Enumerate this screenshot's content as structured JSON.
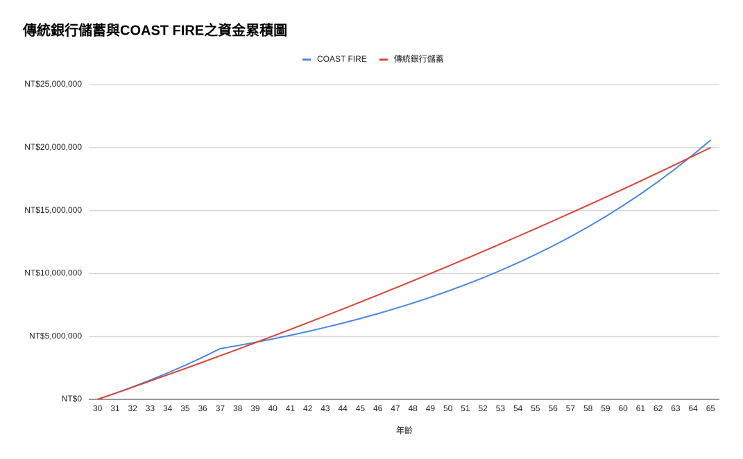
{
  "chart_data": {
    "type": "line",
    "title": "傳統銀行儲蓄與COAST FIRE之資金累積圖",
    "x_label": "年齡",
    "categories": [
      "30",
      "31",
      "32",
      "33",
      "34",
      "35",
      "36",
      "37",
      "38",
      "39",
      "40",
      "41",
      "42",
      "43",
      "44",
      "45",
      "46",
      "47",
      "48",
      "49",
      "50",
      "51",
      "52",
      "53",
      "54",
      "55",
      "56",
      "57",
      "58",
      "59",
      "60",
      "61",
      "62",
      "63",
      "64",
      "65"
    ],
    "series": [
      {
        "name": "COAST FIRE",
        "color": "#4a86e8",
        "values": [
          0,
          480000,
          988800,
          1528128,
          2099808,
          2705808,
          3348144,
          4029024,
          4270765,
          4527011,
          4798631,
          5086549,
          5391742,
          5715247,
          6058162,
          6421652,
          6806951,
          7215368,
          7648290,
          8107187,
          8593619,
          9109236,
          9655790,
          10235137,
          10849245,
          11500200,
          12190212,
          12921625,
          13696923,
          14518738,
          15389862,
          16313254,
          17292049,
          18329572,
          19429346,
          20595107
        ]
      },
      {
        "name": "傳統銀行儲蓄",
        "color": "#db4437",
        "values": [
          0,
          480000,
          964800,
          1454448,
          1948992,
          2448480,
          2952960,
          3462480,
          3977136,
          4496880,
          5021856,
          5552064,
          6087600,
          6628464,
          7174752,
          7726512,
          8283792,
          8846592,
          9415056,
          9989232,
          10569120,
          11154816,
          11746368,
          12343824,
          12947280,
          13556736,
          14172288,
          14794032,
          15421968,
          16056192,
          16696752,
          17343696,
          17997168,
          18657120,
          19323696,
          19996944
        ]
      }
    ],
    "ylim": [
      0,
      25000000
    ],
    "yticks": [
      {
        "value": 0,
        "label": "NT$0"
      },
      {
        "value": 5000000,
        "label": "NT$5,000,000"
      },
      {
        "value": 10000000,
        "label": "NT$10,000,000"
      },
      {
        "value": 15000000,
        "label": "NT$15,000,000"
      },
      {
        "value": 20000000,
        "label": "NT$20,000,000"
      },
      {
        "value": 25000000,
        "label": "NT$25,000,000"
      }
    ],
    "grid": true,
    "legend": "top"
  }
}
